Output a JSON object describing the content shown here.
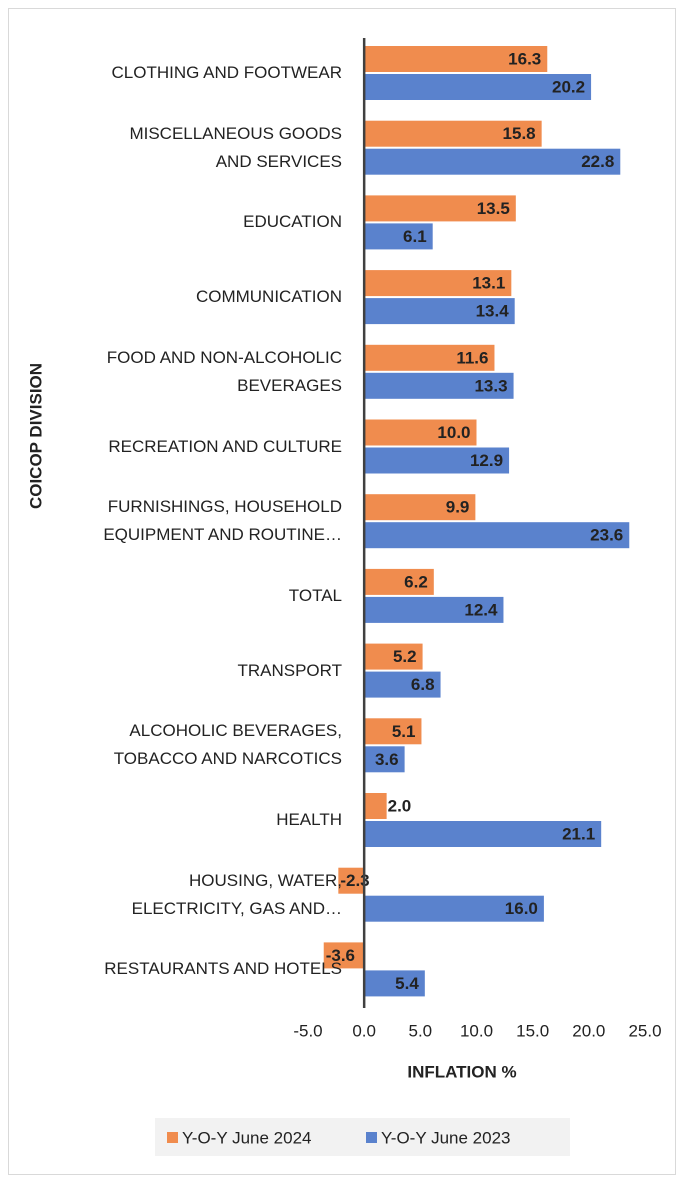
{
  "chart_data": {
    "type": "hbar",
    "categories": [
      "CLOTHING AND FOOTWEAR",
      "MISCELLANEOUS GOODS\nAND SERVICES",
      "EDUCATION",
      "COMMUNICATION",
      "FOOD AND NON-ALCOHOLIC\nBEVERAGES",
      "RECREATION AND CULTURE",
      "FURNISHINGS, HOUSEHOLD\nEQUIPMENT AND ROUTINE…",
      "TOTAL",
      "TRANSPORT",
      "ALCOHOLIC BEVERAGES,\nTOBACCO AND NARCOTICS",
      "HEALTH",
      "HOUSING, WATER,\nELECTRICITY, GAS AND…",
      "RESTAURANTS AND HOTELS"
    ],
    "series": [
      {
        "name": "Y-O-Y June 2024",
        "color": "#f08c4e",
        "values": [
          16.3,
          15.8,
          13.5,
          13.1,
          11.6,
          10.0,
          9.9,
          6.2,
          5.2,
          5.1,
          2.0,
          -2.3,
          -3.6
        ],
        "value_labels": [
          "16.3",
          "15.8",
          "13.5",
          "13.1",
          "11.6",
          "10.0",
          "9.9",
          "6.2",
          "5.2",
          "5.1",
          "2.0",
          "-2.3",
          "-3.6"
        ]
      },
      {
        "name": "Y-O-Y June 2023",
        "color": "#5a82cd",
        "values": [
          20.2,
          22.8,
          6.1,
          13.4,
          13.3,
          12.9,
          23.6,
          12.4,
          6.8,
          3.6,
          21.1,
          16.0,
          5.4
        ],
        "value_labels": [
          "20.2",
          "22.8",
          "6.1",
          "13.4",
          "13.3",
          "12.9",
          "23.6",
          "12.4",
          "6.8",
          "3.6",
          "21.1",
          "16.0",
          "5.4"
        ]
      }
    ],
    "xlim": [
      -5,
      25
    ],
    "xticks": [
      {
        "value": -5,
        "label": "-5.0"
      },
      {
        "value": 0,
        "label": "0.0"
      },
      {
        "value": 5,
        "label": "5.0"
      },
      {
        "value": 10,
        "label": "10.0"
      },
      {
        "value": 15,
        "label": "15.0"
      },
      {
        "value": 20,
        "label": "20.0"
      },
      {
        "value": 25,
        "label": "25.0"
      }
    ],
    "x_label": "INFLATION %",
    "y_label": "COICOP DIVISION",
    "grid": false,
    "legend": "bottom"
  }
}
